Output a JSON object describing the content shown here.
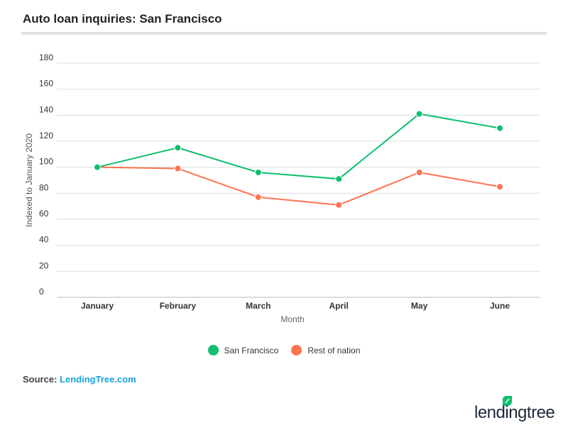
{
  "title": "Auto loan inquiries: San Francisco",
  "source": {
    "label": "Source:",
    "link": "LendingTree.com"
  },
  "logo": "lendingtree",
  "chart_data": {
    "type": "line",
    "title": "Auto loan inquiries: San Francisco",
    "xlabel": "Month",
    "ylabel": "Indexed to January 2020",
    "categories": [
      "January",
      "February",
      "March",
      "April",
      "May",
      "June"
    ],
    "ylim": [
      0,
      180
    ],
    "yticks": [
      0,
      20,
      40,
      60,
      80,
      100,
      120,
      140,
      160,
      180
    ],
    "grid": true,
    "legend_position": "bottom",
    "series": [
      {
        "name": "San Francisco",
        "color": "#0fbf6e",
        "values": [
          100,
          115,
          96,
          91,
          141,
          130
        ]
      },
      {
        "name": "Rest of nation",
        "color": "#ff7350",
        "values": [
          100,
          99,
          77,
          71,
          96,
          85
        ]
      }
    ]
  }
}
